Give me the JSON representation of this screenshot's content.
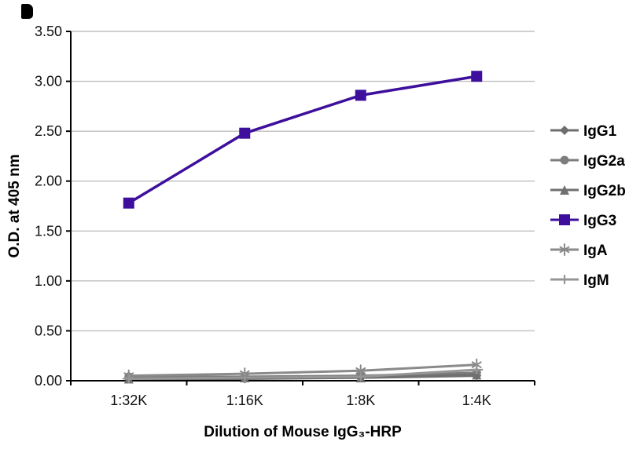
{
  "figure": {
    "title": "",
    "background": "#ffffff"
  },
  "colors": {
    "igg3_purple": "#3d0f9c",
    "gray_series": "#7d7d7d",
    "gridline": "#bfbfbf",
    "axis": "#000000",
    "text": "#111111"
  },
  "chart_data": {
    "type": "line",
    "title": "",
    "xlabel": "Dilution of Mouse IgG₃-HRP",
    "ylabel": "O.D. at 405 nm",
    "categories": [
      "1:32K",
      "1:16K",
      "1:8K",
      "1:4K"
    ],
    "ylim": [
      0,
      3.5
    ],
    "y_ticks": [
      0.0,
      0.5,
      1.0,
      1.5,
      2.0,
      2.5,
      3.0,
      3.5
    ],
    "y_tick_labels": [
      "0.00",
      "0.50",
      "1.00",
      "1.50",
      "2.00",
      "2.50",
      "3.00",
      "3.50"
    ],
    "grid": "horizontal",
    "legend_position": "right",
    "series": [
      {
        "name": "IgG1",
        "marker": "diamond",
        "color": "#6e6e6e",
        "values": [
          0.02,
          0.02,
          0.03,
          0.05
        ]
      },
      {
        "name": "IgG2a",
        "marker": "circle",
        "color": "#7d7d7d",
        "values": [
          0.04,
          0.04,
          0.05,
          0.08
        ]
      },
      {
        "name": "IgG2b",
        "marker": "triangle",
        "color": "#707070",
        "values": [
          0.02,
          0.03,
          0.03,
          0.06
        ]
      },
      {
        "name": "IgG3",
        "marker": "square",
        "color": "#3d0f9c",
        "values": [
          1.78,
          2.48,
          2.86,
          3.05
        ]
      },
      {
        "name": "IgA",
        "marker": "asterisk",
        "color": "#8a8a8a",
        "values": [
          0.05,
          0.07,
          0.1,
          0.16
        ]
      },
      {
        "name": "IgM",
        "marker": "plus",
        "color": "#969696",
        "values": [
          0.02,
          0.03,
          0.04,
          0.11
        ]
      }
    ]
  }
}
